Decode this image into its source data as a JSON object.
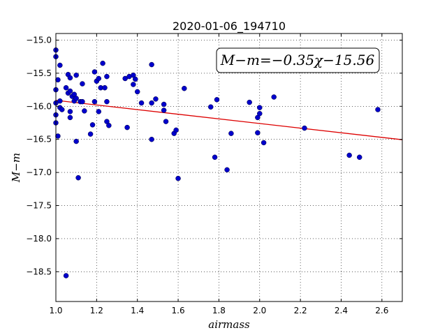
{
  "chart_data": {
    "type": "scatter",
    "title": "2020-01-06_194710",
    "xlabel": "airmass",
    "ylabel": "M−m",
    "xlim": [
      1.0,
      2.7
    ],
    "ylim": [
      -18.95,
      -14.9
    ],
    "x_ticks": [
      1.0,
      1.2,
      1.4,
      1.6,
      1.8,
      2.0,
      2.2,
      2.4,
      2.6
    ],
    "y_ticks": [
      -15.0,
      -15.5,
      -16.0,
      -16.5,
      -17.0,
      -17.5,
      -18.0,
      -18.5
    ],
    "x_tick_labels": [
      "1.0",
      "1.2",
      "1.4",
      "1.6",
      "1.8",
      "2.0",
      "2.2",
      "2.4",
      "2.6"
    ],
    "y_tick_labels": [
      "−15.0",
      "−15.5",
      "−16.0",
      "−16.5",
      "−17.0",
      "−17.5",
      "−18.0",
      "−18.5"
    ],
    "grid": true,
    "grid_style": "dotted",
    "annotation": "M−m=−0.35χ−15.56",
    "annotation_position": "top-right",
    "point_color": "#0000cc",
    "fit_line": {
      "slope": -0.35,
      "intercept": -15.56,
      "color": "#dd0000"
    },
    "points": [
      {
        "x": 1.0,
        "y": -15.15
      },
      {
        "x": 1.0,
        "y": -15.25
      },
      {
        "x": 1.01,
        "y": -15.6
      },
      {
        "x": 1.0,
        "y": -15.75
      },
      {
        "x": 1.0,
        "y": -15.95
      },
      {
        "x": 1.0,
        "y": -16.13
      },
      {
        "x": 1.0,
        "y": -16.25
      },
      {
        "x": 1.01,
        "y": -16.45
      },
      {
        "x": 1.02,
        "y": -15.38
      },
      {
        "x": 1.02,
        "y": -15.92
      },
      {
        "x": 1.02,
        "y": -16.02
      },
      {
        "x": 1.03,
        "y": -16.05
      },
      {
        "x": 1.05,
        "y": -15.72
      },
      {
        "x": 1.06,
        "y": -15.52
      },
      {
        "x": 1.06,
        "y": -15.8
      },
      {
        "x": 1.07,
        "y": -15.77
      },
      {
        "x": 1.07,
        "y": -15.57
      },
      {
        "x": 1.08,
        "y": -15.85
      },
      {
        "x": 1.07,
        "y": -16.08
      },
      {
        "x": 1.07,
        "y": -16.17
      },
      {
        "x": 1.09,
        "y": -15.82
      },
      {
        "x": 1.09,
        "y": -15.92
      },
      {
        "x": 1.1,
        "y": -15.53
      },
      {
        "x": 1.1,
        "y": -15.88
      },
      {
        "x": 1.12,
        "y": -15.93
      },
      {
        "x": 1.13,
        "y": -15.66
      },
      {
        "x": 1.13,
        "y": -15.93
      },
      {
        "x": 1.14,
        "y": -16.07
      },
      {
        "x": 1.1,
        "y": -16.53
      },
      {
        "x": 1.11,
        "y": -17.08
      },
      {
        "x": 1.05,
        "y": -18.56
      },
      {
        "x": 1.17,
        "y": -16.42
      },
      {
        "x": 1.18,
        "y": -16.28
      },
      {
        "x": 1.19,
        "y": -15.93
      },
      {
        "x": 1.19,
        "y": -15.48
      },
      {
        "x": 1.2,
        "y": -15.62
      },
      {
        "x": 1.21,
        "y": -15.58
      },
      {
        "x": 1.21,
        "y": -16.08
      },
      {
        "x": 1.22,
        "y": -15.72
      },
      {
        "x": 1.23,
        "y": -15.35
      },
      {
        "x": 1.24,
        "y": -15.72
      },
      {
        "x": 1.25,
        "y": -15.55
      },
      {
        "x": 1.25,
        "y": -15.93
      },
      {
        "x": 1.25,
        "y": -16.23
      },
      {
        "x": 1.26,
        "y": -16.29
      },
      {
        "x": 1.34,
        "y": -15.58
      },
      {
        "x": 1.35,
        "y": -16.32
      },
      {
        "x": 1.36,
        "y": -15.55
      },
      {
        "x": 1.38,
        "y": -15.53
      },
      {
        "x": 1.38,
        "y": -15.67
      },
      {
        "x": 1.39,
        "y": -15.59
      },
      {
        "x": 1.4,
        "y": -15.78
      },
      {
        "x": 1.42,
        "y": -15.95
      },
      {
        "x": 1.47,
        "y": -15.37
      },
      {
        "x": 1.47,
        "y": -15.95
      },
      {
        "x": 1.49,
        "y": -15.89
      },
      {
        "x": 1.47,
        "y": -16.5
      },
      {
        "x": 1.53,
        "y": -16.06
      },
      {
        "x": 1.53,
        "y": -15.97
      },
      {
        "x": 1.54,
        "y": -16.23
      },
      {
        "x": 1.58,
        "y": -16.41
      },
      {
        "x": 1.59,
        "y": -16.36
      },
      {
        "x": 1.6,
        "y": -17.09
      },
      {
        "x": 1.63,
        "y": -15.73
      },
      {
        "x": 1.76,
        "y": -16.01
      },
      {
        "x": 1.78,
        "y": -16.77
      },
      {
        "x": 1.79,
        "y": -15.9
      },
      {
        "x": 1.84,
        "y": -16.96
      },
      {
        "x": 1.86,
        "y": -16.41
      },
      {
        "x": 1.95,
        "y": -15.94
      },
      {
        "x": 1.99,
        "y": -16.17
      },
      {
        "x": 1.99,
        "y": -16.4
      },
      {
        "x": 2.0,
        "y": -16.11
      },
      {
        "x": 2.0,
        "y": -16.02
      },
      {
        "x": 2.02,
        "y": -16.55
      },
      {
        "x": 2.07,
        "y": -15.86
      },
      {
        "x": 2.22,
        "y": -16.33
      },
      {
        "x": 2.44,
        "y": -16.74
      },
      {
        "x": 2.49,
        "y": -16.77
      },
      {
        "x": 2.58,
        "y": -16.05
      }
    ]
  }
}
